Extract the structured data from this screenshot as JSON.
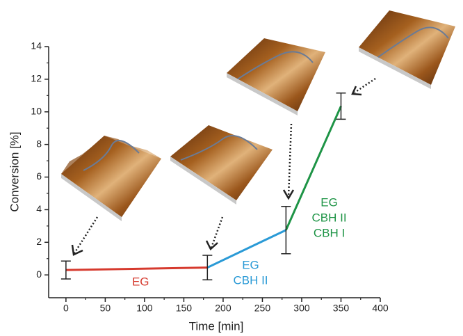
{
  "chart_data": {
    "type": "line",
    "xlabel": "Time [min]",
    "ylabel": "Conversion [%]",
    "xlim": [
      -22,
      400
    ],
    "ylim": [
      -1.4,
      14
    ],
    "xticks": [
      0,
      50,
      100,
      150,
      200,
      250,
      300,
      350,
      400
    ],
    "yticks": [
      0,
      2,
      4,
      6,
      8,
      10,
      12,
      14
    ],
    "xminorticks": [
      25,
      75,
      125,
      175,
      225,
      275,
      325,
      375
    ],
    "yminorticks": [
      1,
      3,
      5,
      7,
      9,
      11,
      13
    ],
    "series": [
      {
        "labels": [
          "EG"
        ],
        "color": "#d63a2e",
        "x": [
          0,
          180
        ],
        "values": [
          0.3,
          0.45
        ]
      },
      {
        "labels": [
          "EG",
          "CBH II"
        ],
        "color": "#2a9ad6",
        "x": [
          180,
          280
        ],
        "values": [
          0.45,
          2.75
        ]
      },
      {
        "labels": [
          "EG",
          "CBH II",
          "CBH I"
        ],
        "color": "#1e9446",
        "x": [
          280,
          350
        ],
        "values": [
          2.75,
          10.35
        ]
      }
    ],
    "error_bars": {
      "x": [
        0,
        180,
        280,
        350
      ],
      "values": [
        0.3,
        0.45,
        2.75,
        10.35
      ],
      "errors": [
        0.55,
        0.75,
        1.45,
        0.8
      ]
    }
  }
}
